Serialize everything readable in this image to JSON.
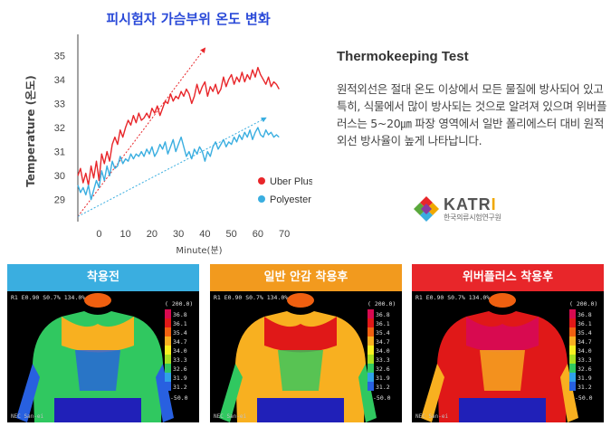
{
  "chart_data": {
    "type": "line",
    "title": "피시험자 가슴부위 온도 변화",
    "xlabel": "Minute(분)",
    "ylabel": "Temperature (온도)",
    "x_ticks": [
      0,
      10,
      20,
      30,
      40,
      50,
      60,
      70
    ],
    "y_ticks": [
      29,
      30,
      31,
      32,
      33,
      34,
      35
    ],
    "xlim": [
      -8,
      72
    ],
    "ylim": [
      28.2,
      35.8
    ],
    "legend_position": "bottom-right",
    "series": [
      {
        "name": "Uber Plus",
        "color": "#e8262a",
        "x": [
          -8,
          -7,
          -6,
          -5,
          -4,
          -3,
          -2,
          -1,
          0,
          1,
          2,
          3,
          4,
          5,
          6,
          7,
          8,
          9,
          10,
          11,
          12,
          13,
          14,
          15,
          16,
          17,
          18,
          19,
          20,
          21,
          22,
          23,
          24,
          25,
          26,
          27,
          28,
          29,
          30,
          31,
          32,
          33,
          34,
          35,
          36,
          37,
          38,
          39,
          40,
          41,
          42,
          43,
          44,
          45,
          46,
          47,
          48,
          49,
          50,
          51,
          52,
          53,
          54,
          55,
          56,
          57,
          58,
          59,
          60,
          61,
          62,
          63,
          64,
          65,
          66,
          67,
          68
        ],
        "values": [
          30.0,
          30.3,
          29.7,
          30.1,
          29.6,
          30.4,
          29.9,
          30.6,
          29.8,
          30.9,
          30.5,
          31.0,
          30.6,
          31.3,
          31.6,
          31.3,
          31.9,
          31.6,
          32.0,
          32.3,
          32.1,
          32.5,
          32.2,
          32.6,
          32.3,
          32.4,
          32.6,
          32.4,
          32.8,
          32.6,
          32.9,
          32.5,
          32.8,
          33.1,
          33.0,
          33.4,
          33.1,
          33.3,
          33.2,
          33.5,
          33.3,
          33.6,
          33.4,
          33.0,
          33.3,
          33.8,
          33.4,
          33.7,
          33.9,
          33.3,
          33.7,
          33.5,
          33.8,
          33.4,
          33.6,
          34.1,
          33.7,
          34.0,
          34.2,
          33.8,
          34.1,
          33.9,
          34.3,
          33.9,
          34.2,
          34.0,
          34.4,
          34.1,
          34.5,
          34.2,
          34.0,
          33.8,
          34.1,
          33.7,
          33.9,
          33.8,
          33.6
        ]
      },
      {
        "name": "Polyester",
        "color": "#3aaee0",
        "x": [
          -8,
          -7,
          -6,
          -5,
          -4,
          -3,
          -2,
          -1,
          0,
          1,
          2,
          3,
          4,
          5,
          6,
          7,
          8,
          9,
          10,
          11,
          12,
          13,
          14,
          15,
          16,
          17,
          18,
          19,
          20,
          21,
          22,
          23,
          24,
          25,
          26,
          27,
          28,
          29,
          30,
          31,
          32,
          33,
          34,
          35,
          36,
          37,
          38,
          39,
          40,
          41,
          42,
          43,
          44,
          45,
          46,
          47,
          48,
          49,
          50,
          51,
          52,
          53,
          54,
          55,
          56,
          57,
          58,
          59,
          60,
          61,
          62,
          63,
          64,
          65,
          66,
          67,
          68
        ],
        "values": [
          29.6,
          29.3,
          29.5,
          29.2,
          29.6,
          29.0,
          29.4,
          29.8,
          29.5,
          30.2,
          29.8,
          30.4,
          30.0,
          30.6,
          30.3,
          30.4,
          30.8,
          30.5,
          30.7,
          30.6,
          30.9,
          30.7,
          30.9,
          30.8,
          31.0,
          30.8,
          31.1,
          30.9,
          31.2,
          30.8,
          31.0,
          31.3,
          31.1,
          31.4,
          30.9,
          31.2,
          31.5,
          31.0,
          31.3,
          31.6,
          31.2,
          30.8,
          31.0,
          30.7,
          31.1,
          30.9,
          31.2,
          31.0,
          30.6,
          31.0,
          30.8,
          31.2,
          31.4,
          31.1,
          31.3,
          31.5,
          31.2,
          31.4,
          31.3,
          31.6,
          31.4,
          31.7,
          31.5,
          31.8,
          31.6,
          31.9,
          31.5,
          31.8,
          32.0,
          31.7,
          31.6,
          31.9,
          31.7,
          31.8,
          31.6,
          31.7,
          31.6
        ]
      }
    ],
    "trend_lines": [
      {
        "series": "Uber Plus",
        "color": "#e8262a",
        "from": [
          -8,
          28.3
        ],
        "to": [
          40,
          35.3
        ]
      },
      {
        "series": "Polyester",
        "color": "#3aaee0",
        "from": [
          -8,
          28.3
        ],
        "to": [
          63,
          32.4
        ]
      }
    ]
  },
  "text_panel": {
    "title": "Thermokeeping Test",
    "description": "원적외선은 절대 온도 이상에서 모든 물질에 방사되어 있고 특히, 식물에서 많이 방사되는 것으로 알려져 있으며 위버플러스는 5~20㎛ 파장 영역에서 일반 폴리에스터 대비 원적외선 방사율이 높게 나타납니다."
  },
  "logo": {
    "name_main": "KATR",
    "name_accent": "I",
    "subtitle": "한국의류시험연구원",
    "colors": [
      "#e8262a",
      "#f0a800",
      "#3aaee0",
      "#5aa83c",
      "#8a3aa0"
    ]
  },
  "thermal_panels": [
    {
      "label": "착용전",
      "header_color": "#3aaee0",
      "level": 0.35
    },
    {
      "label": "일반 안감 착용후",
      "header_color": "#f29a1e",
      "level": 0.6
    },
    {
      "label": "위버플러스 착용후",
      "header_color": "#e8262a",
      "level": 0.85
    }
  ],
  "thermal_image": {
    "top_text": "R1 E0.90 S0.7% 134.0%",
    "scale_top": "( 200.0)",
    "scale_values": [
      "36.8",
      "36.1",
      "35.4",
      "34.7",
      "34.0",
      "33.3",
      "32.6",
      "31.9",
      "31.2"
    ],
    "scale_bottom": "-50.0",
    "bottom_text": "NEC San-ei"
  }
}
